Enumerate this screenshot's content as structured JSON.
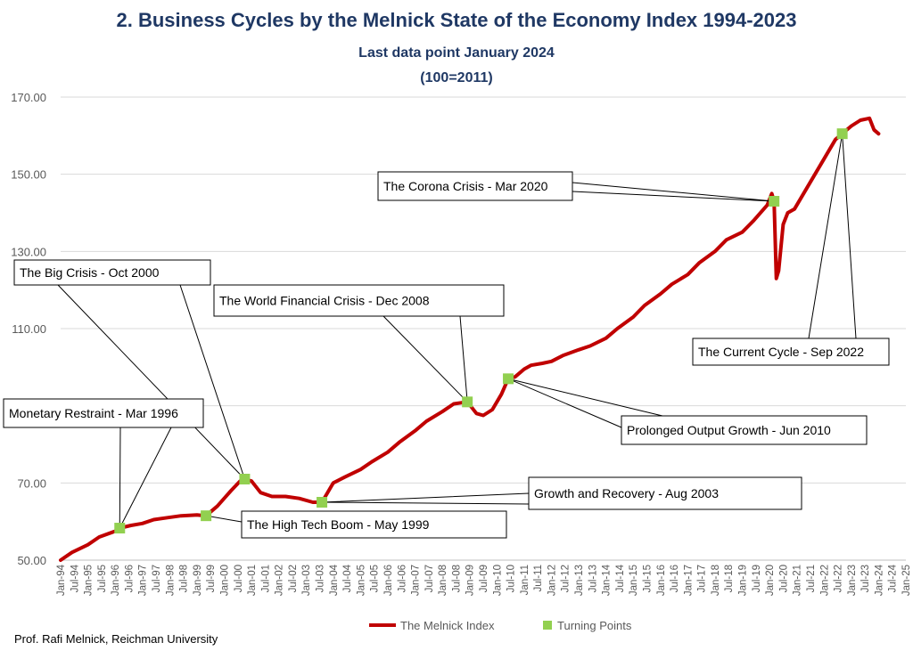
{
  "chart_data": {
    "type": "line",
    "title": "2.  Business Cycles by the Melnick State of the Economy Index 1994-2023",
    "subtitle": "Last data point January 2024",
    "subtitle2": "(100=2011)",
    "credit": "Prof. Rafi Melnick, Reichman University",
    "ylim": [
      50,
      170
    ],
    "ytick_labels": [
      "50.00",
      "70.00",
      "90.00",
      "110.00",
      "130.00",
      "150.00",
      "170.00"
    ],
    "yticks": [
      50,
      70,
      90,
      110,
      130,
      150,
      170
    ],
    "xlim": [
      "1994-01",
      "2025-01"
    ],
    "xtick_labels": [
      "Jan-94",
      "Jul-94",
      "Jan-95",
      "Jul-95",
      "Jan-96",
      "Jul-96",
      "Jan-97",
      "Jul-97",
      "Jan-98",
      "Jul-98",
      "Jan-99",
      "Jul-99",
      "Jan-00",
      "Jul-00",
      "Jan-01",
      "Jul-01",
      "Jan-02",
      "Jul-02",
      "Jan-03",
      "Jul-03",
      "Jan-04",
      "Jul-04",
      "Jan-05",
      "Jul-05",
      "Jan-06",
      "Jul-06",
      "Jan-07",
      "Jul-07",
      "Jan-08",
      "Jul-08",
      "Jan-09",
      "Jul-09",
      "Jan-10",
      "Jul-10",
      "Jan-11",
      "Jul-11",
      "Jan-12",
      "Jul-12",
      "Jan-13",
      "Jul-13",
      "Jan-14",
      "Jul-14",
      "Jan-15",
      "Jul-15",
      "Jan-16",
      "Jul-16",
      "Jan-17",
      "Jul-17",
      "Jan-18",
      "Jul-18",
      "Jan-19",
      "Jul-19",
      "Jan-20",
      "Jul-20",
      "Jan-21",
      "Jul-21",
      "Jan-22",
      "Jul-22",
      "Jan-23",
      "Jul-23",
      "Jan-24",
      "Jul-24",
      "Jan-25"
    ],
    "grid": true,
    "legend_placement": "bottom",
    "series": [
      {
        "name": "The Melnick Index",
        "color": "#c00000",
        "x": [
          "1994-01",
          "1994-06",
          "1995-01",
          "1995-06",
          "1996-01",
          "1996-03",
          "1996-08",
          "1997-01",
          "1997-06",
          "1997-12",
          "1998-06",
          "1999-01",
          "1999-05",
          "1999-10",
          "2000-04",
          "2000-08",
          "2000-10",
          "2001-01",
          "2001-05",
          "2001-10",
          "2002-04",
          "2002-10",
          "2003-04",
          "2003-08",
          "2004-01",
          "2004-06",
          "2005-01",
          "2005-06",
          "2006-01",
          "2006-06",
          "2007-01",
          "2007-06",
          "2008-01",
          "2008-06",
          "2008-12",
          "2009-04",
          "2009-07",
          "2009-11",
          "2010-03",
          "2010-06",
          "2010-09",
          "2011-01",
          "2011-04",
          "2011-09",
          "2012-01",
          "2012-06",
          "2013-01",
          "2013-06",
          "2014-01",
          "2014-06",
          "2015-01",
          "2015-06",
          "2016-01",
          "2016-06",
          "2017-01",
          "2017-06",
          "2018-01",
          "2018-06",
          "2019-01",
          "2019-06",
          "2019-12",
          "2020-02",
          "2020-03",
          "2020-04",
          "2020-05",
          "2020-07",
          "2020-09",
          "2020-12",
          "2021-06",
          "2022-01",
          "2022-06",
          "2022-09",
          "2023-01",
          "2023-05",
          "2023-09",
          "2023-11",
          "2024-01"
        ],
        "values": [
          50.0,
          52.0,
          54.0,
          56.0,
          57.5,
          58.3,
          59.0,
          59.5,
          60.5,
          61.0,
          61.5,
          61.7,
          61.5,
          64.0,
          68.0,
          70.5,
          71.0,
          70.5,
          67.5,
          66.5,
          66.5,
          66.0,
          65.0,
          65.0,
          70.0,
          71.5,
          73.5,
          75.5,
          78.0,
          80.5,
          83.5,
          86.0,
          88.5,
          90.5,
          91.0,
          88.0,
          87.5,
          89.0,
          93.0,
          97.0,
          97.5,
          99.5,
          100.5,
          101.0,
          101.5,
          103.0,
          104.5,
          105.5,
          107.5,
          110.0,
          113.0,
          116.0,
          119.0,
          121.5,
          124.0,
          127.0,
          130.0,
          133.0,
          135.0,
          138.0,
          142.0,
          145.0,
          143.0,
          123.0,
          125.0,
          137.0,
          140.0,
          141.0,
          147.0,
          154.0,
          159.0,
          160.5,
          162.5,
          164.0,
          164.5,
          161.5,
          160.5
        ]
      },
      {
        "name": "Turning Points",
        "color": "#92d050",
        "x": [
          "1996-03",
          "1999-05",
          "2000-10",
          "2003-08",
          "2008-12",
          "2010-06",
          "2020-03",
          "2022-09"
        ],
        "values": [
          58.3,
          61.5,
          71.0,
          65.0,
          91.0,
          97.0,
          143.0,
          160.5
        ]
      }
    ],
    "annotations": [
      {
        "text": "Monetary Restraint - Mar 1996",
        "target": "1996-03"
      },
      {
        "text": "The High Tech Boom - May 1999",
        "target": "1999-05"
      },
      {
        "text": "The Big Crisis - Oct 2000",
        "target": "2000-10"
      },
      {
        "text": "Growth and Recovery - Aug 2003",
        "target": "2003-08"
      },
      {
        "text": "The World Financial Crisis - Dec 2008",
        "target": "2008-12"
      },
      {
        "text": "Prolonged Output Growth - Jun 2010",
        "target": "2010-06"
      },
      {
        "text": "The Corona Crisis - Mar 2020",
        "target": "2020-03"
      },
      {
        "text": "The Current Cycle - Sep 2022",
        "target": "2022-09"
      }
    ]
  }
}
